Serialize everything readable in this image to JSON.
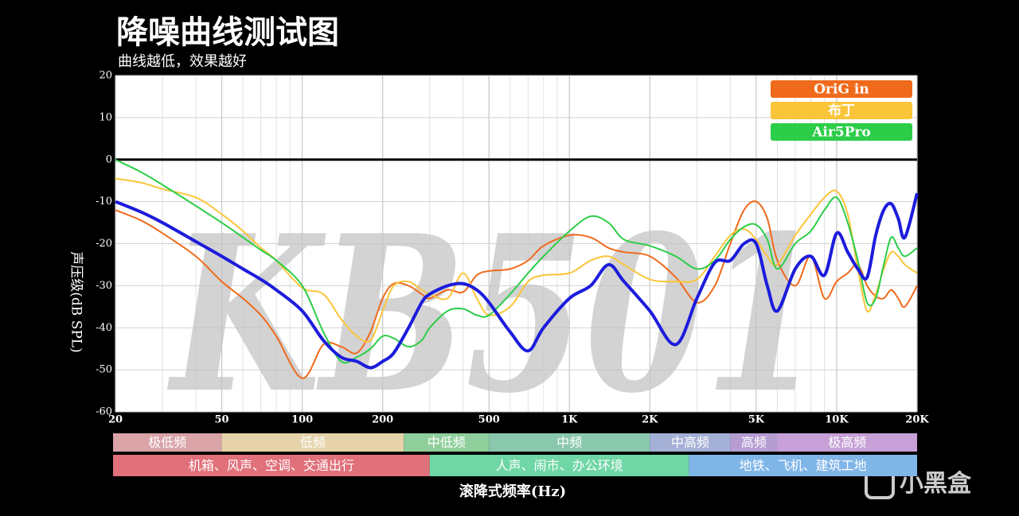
{
  "chart_data": {
    "type": "line",
    "title": "降噪曲线测试图",
    "subtitle": "曲线越低，效果越好",
    "x_label": "滚降式频率(Hz)",
    "y_label": "声压级(dB SPL)",
    "watermark": "KB501",
    "logo": "小黑盒",
    "log_x": true,
    "grid": true,
    "legend": "top-right",
    "reference_line": 0,
    "xlim": [
      20,
      20000
    ],
    "ylim": [
      -60,
      20
    ],
    "xticks": [
      20,
      50,
      100,
      200,
      500,
      {
        "value": 1000,
        "label": "1K"
      },
      {
        "value": 2000,
        "label": "2K"
      },
      {
        "value": 5000,
        "label": "5K"
      },
      {
        "value": 10000,
        "label": "10K"
      },
      {
        "value": 20000,
        "label": "20K"
      }
    ],
    "yticks": [
      20,
      10,
      0,
      -10,
      -20,
      -30,
      -40,
      -50,
      -60
    ],
    "x": [
      20,
      25,
      30,
      40,
      50,
      60,
      70,
      80,
      100,
      120,
      140,
      160,
      180,
      200,
      220,
      250,
      280,
      300,
      350,
      400,
      450,
      500,
      600,
      700,
      800,
      1000,
      1200,
      1400,
      1600,
      2000,
      2500,
      3000,
      3500,
      4000,
      4500,
      5000,
      5500,
      6000,
      7000,
      8000,
      9000,
      10000,
      11000,
      12000,
      13000,
      14000,
      15000,
      16000,
      17000,
      18000,
      20000
    ],
    "series": [
      {
        "name": "OriG in",
        "color": "#f06a1c",
        "values": [
          -12,
          -14.5,
          -17.5,
          -23,
          -29,
          -33,
          -37,
          -42,
          -52,
          -44,
          -44.5,
          -46,
          -41,
          -33,
          -29.5,
          -30,
          -32,
          -33,
          -31,
          -31.5,
          -27.5,
          -26.5,
          -26,
          -24,
          -20.5,
          -18,
          -18.5,
          -21,
          -22,
          -23,
          -28,
          -34,
          -30,
          -20,
          -12,
          -10,
          -14,
          -24,
          -30,
          -23,
          -33,
          -29,
          -27,
          -25,
          -30,
          -32.5,
          -33,
          -31,
          -33,
          -35,
          -30
        ]
      },
      {
        "name": "布丁",
        "color": "#fbc53a",
        "values": [
          -4.5,
          -5.5,
          -7,
          -9,
          -13,
          -17,
          -21,
          -24,
          -30.5,
          -32,
          -38,
          -42,
          -43,
          -36,
          -30,
          -29,
          -31,
          -32,
          -33,
          -27,
          -33,
          -37,
          -35,
          -29,
          -27.5,
          -27,
          -24,
          -23,
          -25,
          -28.5,
          -29,
          -28.5,
          -23,
          -18,
          -16.5,
          -19,
          -23,
          -25,
          -18,
          -13,
          -9,
          -7.5,
          -13,
          -26,
          -36,
          -32,
          -26,
          -22,
          -23,
          -25,
          -27
        ]
      },
      {
        "name": "Air5Pro",
        "color": "#2ccd48",
        "values": [
          0,
          -3,
          -6,
          -11,
          -15,
          -18.5,
          -21.5,
          -24,
          -30,
          -41,
          -48,
          -47,
          -45,
          -42,
          -42.5,
          -44.5,
          -43,
          -40,
          -36,
          -35.5,
          -37,
          -37,
          -32,
          -27,
          -23,
          -17,
          -13.5,
          -15,
          -19,
          -20.5,
          -23,
          -26,
          -24,
          -19,
          -16,
          -15.5,
          -19,
          -26,
          -20,
          -17,
          -12,
          -9,
          -15,
          -24,
          -34,
          -33,
          -25,
          -18.5,
          -21,
          -23,
          -21
        ]
      },
      {
        "color": "#1c1cdc",
        "values": [
          -10,
          -12.5,
          -15,
          -19.5,
          -23,
          -26,
          -28.5,
          -31,
          -36,
          -43,
          -47,
          -48,
          -49.5,
          -48,
          -46,
          -40,
          -34,
          -32,
          -30,
          -29.5,
          -31,
          -34,
          -41,
          -45.5,
          -40,
          -33,
          -30,
          -25,
          -29,
          -36,
          -44,
          -33,
          -24.5,
          -24,
          -20,
          -20,
          -30,
          -36,
          -26,
          -23,
          -27.5,
          -17.5,
          -22,
          -26,
          -28,
          -18,
          -12,
          -10.5,
          -14,
          -18.5,
          -8
        ]
      }
    ],
    "band_rows": [
      [
        {
          "label": "极低频",
          "from": 20,
          "to": 50,
          "color": "#d9a3a8"
        },
        {
          "label": "低频",
          "from": 50,
          "to": 240,
          "color": "#e6d3aa"
        },
        {
          "label": "中低频",
          "from": 240,
          "to": 500,
          "color": "#8fcf9b"
        },
        {
          "label": "中频",
          "from": 500,
          "to": 2000,
          "color": "#8ac8ad"
        },
        {
          "label": "中高频",
          "from": 2000,
          "to": 4000,
          "color": "#a4b0d6"
        },
        {
          "label": "高频",
          "from": 4000,
          "to": 6000,
          "color": "#b59dd2"
        },
        {
          "label": "极高频",
          "from": 6000,
          "to": 20000,
          "color": "#c6a0d6"
        }
      ],
      [
        {
          "label": "机箱、风声、空调、交通出行",
          "from": 20,
          "to": 300,
          "color": "#e0707a"
        },
        {
          "label": "人声、闹市、办公环境",
          "from": 300,
          "to": 2800,
          "color": "#6fd6a6"
        },
        {
          "label": "地铁、飞机、建筑工地",
          "from": 2800,
          "to": 20000,
          "color": "#80b5e8"
        }
      ]
    ]
  }
}
